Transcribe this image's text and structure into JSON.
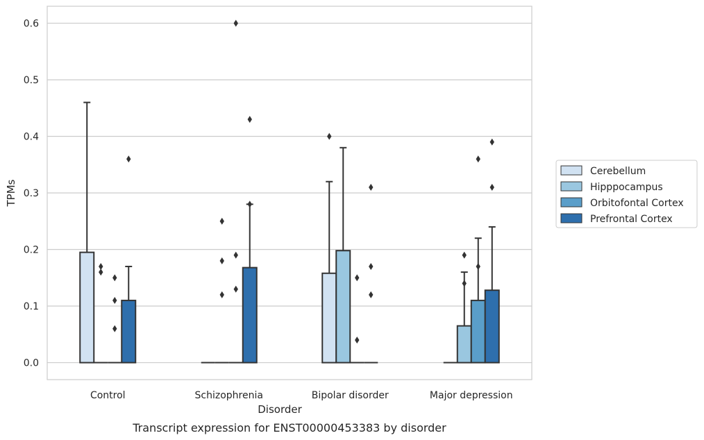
{
  "chart_data": {
    "type": "bar",
    "title": "",
    "caption": "Transcript expression for ENST00000453383 by disorder",
    "xlabel": "Disorder",
    "ylabel": "TPMs",
    "ylim": [
      -0.03,
      0.63
    ],
    "yticks": [
      0.0,
      0.1,
      0.2,
      0.3,
      0.4,
      0.5,
      0.6
    ],
    "ytick_labels": [
      "0.0",
      "0.1",
      "0.2",
      "0.3",
      "0.4",
      "0.5",
      "0.6"
    ],
    "grid": "horizontal",
    "legend_position": "right",
    "categories": [
      "Control",
      "Schizophrenia",
      "Bipolar disorder",
      "Major depression"
    ],
    "series": [
      {
        "name": "Cerebellum",
        "color": "#d1e2f2",
        "values": [
          0.195,
          0.0,
          0.158,
          0.0
        ],
        "whisker_high": [
          0.46,
          null,
          0.32,
          null
        ],
        "outliers": [
          [],
          [],
          [
            0.4
          ],
          []
        ]
      },
      {
        "name": "Hipppocampus",
        "color": "#9ac7e0",
        "values": [
          0.0,
          0.0,
          0.198,
          0.065
        ],
        "whisker_high": [
          null,
          null,
          0.38,
          0.16
        ],
        "outliers": [
          [
            0.17,
            0.16
          ],
          [
            0.25,
            0.18,
            0.12
          ],
          [],
          [
            0.19,
            0.14
          ]
        ]
      },
      {
        "name": "Orbitofontal Cortex",
        "color": "#5a9ec9",
        "values": [
          0.0,
          0.0,
          0.0,
          0.11
        ],
        "whisker_high": [
          null,
          null,
          null,
          0.22
        ],
        "outliers": [
          [
            0.15,
            0.11,
            0.06
          ],
          [
            0.6,
            0.19,
            0.13
          ],
          [
            0.15,
            0.04
          ],
          [
            0.36,
            0.17
          ]
        ]
      },
      {
        "name": "Prefrontal Cortex",
        "color": "#2e6fad",
        "values": [
          0.11,
          0.168,
          0.0,
          0.128
        ],
        "whisker_high": [
          0.17,
          0.28,
          null,
          0.24
        ],
        "outliers": [
          [
            0.36
          ],
          [
            0.43,
            0.28
          ],
          [
            0.31,
            0.17,
            0.12
          ],
          [
            0.31,
            0.39
          ]
        ]
      }
    ]
  }
}
